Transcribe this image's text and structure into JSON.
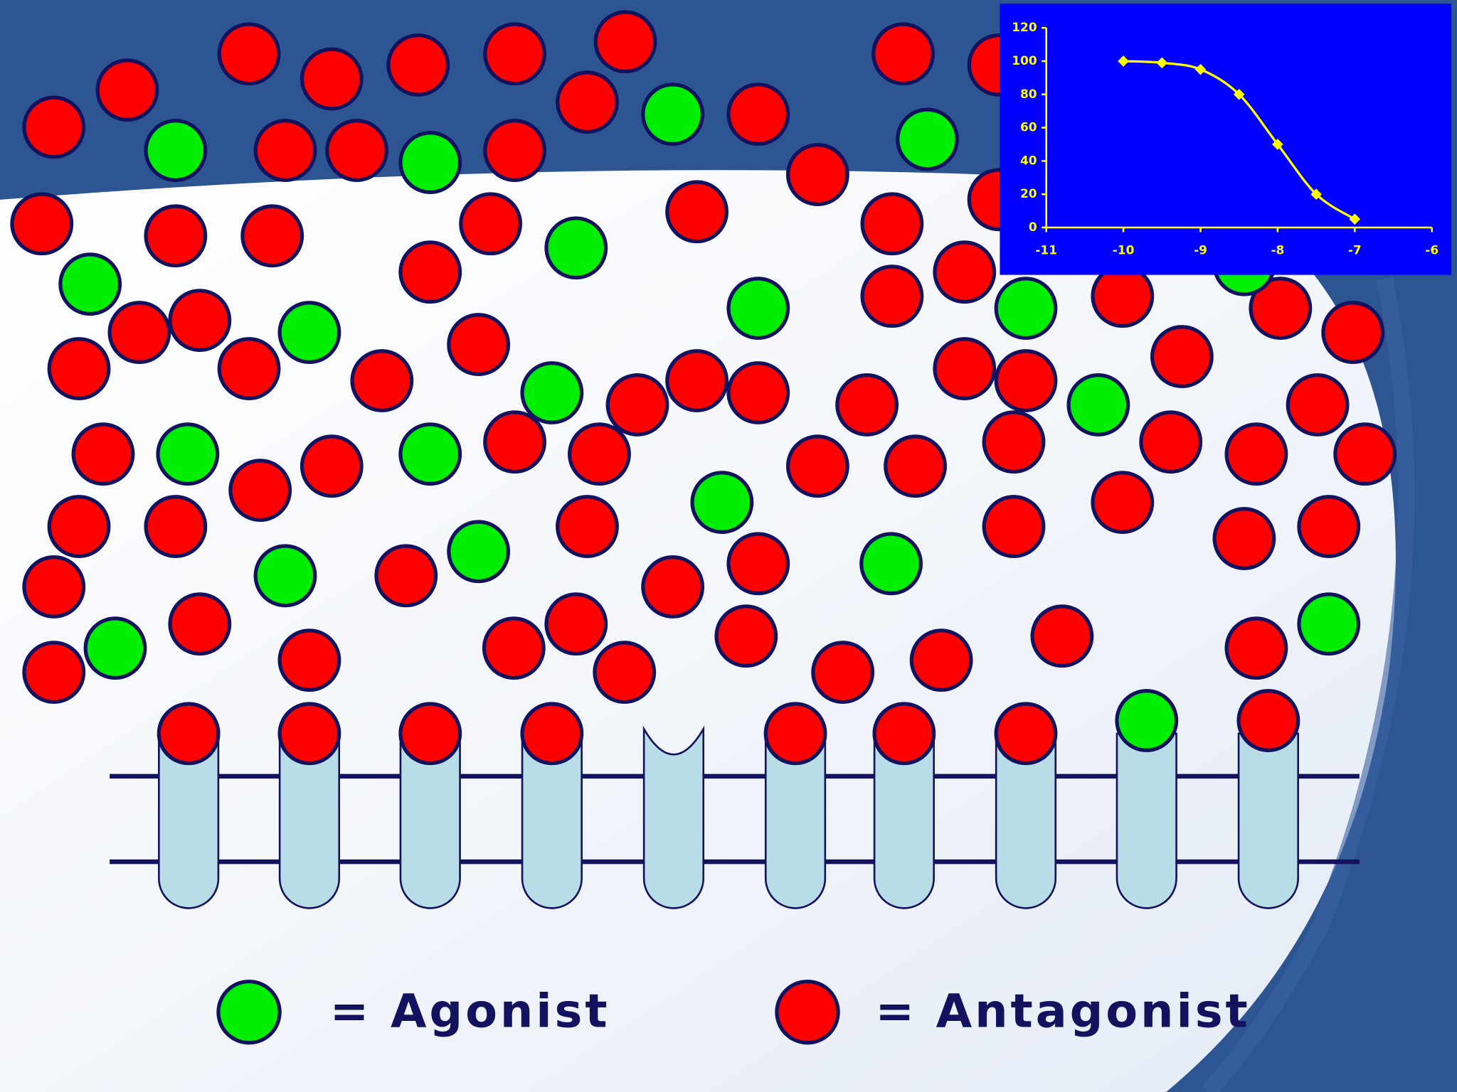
{
  "chart_data": {
    "type": "line",
    "x": [
      -10,
      -9.5,
      -9,
      -8.5,
      -8,
      -7.5,
      -7
    ],
    "series": [
      {
        "color": "#ffff00",
        "values": [
          100,
          99,
          95,
          80,
          50,
          20,
          5
        ]
      }
    ],
    "xlim": [
      -11,
      -6
    ],
    "xticks": [
      -11,
      -10,
      -9,
      -8,
      -7,
      -6
    ],
    "ylim": [
      0,
      120
    ],
    "yticks": [
      0,
      20,
      40,
      60,
      80,
      100,
      120
    ],
    "background": "#0000ff"
  },
  "legend": {
    "agonist": "= Agonist",
    "antagonist": "= Antagonist"
  }
}
